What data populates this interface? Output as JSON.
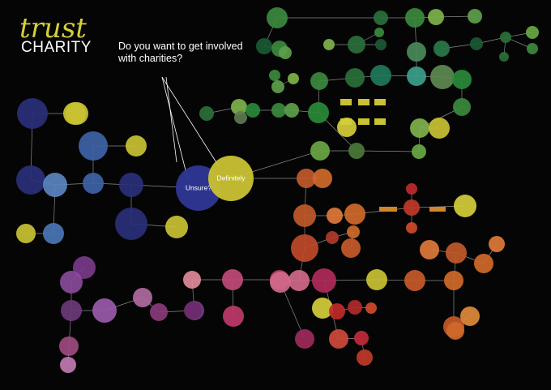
{
  "title": {
    "line1": "trust",
    "line2": "CHARITY"
  },
  "question": "Do you want to get involved with charities?",
  "colors": {
    "background": "#050505",
    "title": "#d4ce3a",
    "connector": "#8a8a8a",
    "annotation_line": "#ffffff"
  },
  "hubs": {
    "unsure": "Unsure?",
    "definitely": "Definitely"
  },
  "node_text": "",
  "nodes": [
    {
      "id": "unsure",
      "label": "Unsure?",
      "color": "#2f3796",
      "big": true
    },
    {
      "id": "definitely",
      "label": "Definitely",
      "color": "#c9c233",
      "big": true
    },
    {
      "id": "b1",
      "label": "",
      "color": "#2a2f78"
    },
    {
      "id": "b2",
      "label": "",
      "color": "#c9c233"
    },
    {
      "id": "b3",
      "label": "",
      "color": "#3f63a6"
    },
    {
      "id": "b4",
      "label": "",
      "color": "#c9c233"
    },
    {
      "id": "b5",
      "label": "",
      "color": "#2a2f78"
    },
    {
      "id": "b6",
      "label": "",
      "color": "#5a86c0"
    },
    {
      "id": "b7",
      "label": "",
      "color": "#3f63a6"
    },
    {
      "id": "b8",
      "label": "",
      "color": "#2a2f78"
    },
    {
      "id": "b9",
      "label": "",
      "color": "#2a2f78"
    },
    {
      "id": "b10",
      "label": "",
      "color": "#c9c233"
    },
    {
      "id": "b11",
      "label": "",
      "color": "#c9c233"
    },
    {
      "id": "b12",
      "label": "",
      "color": "#4a76b6"
    },
    {
      "id": "g1",
      "label": "",
      "color": "#3a8a3e"
    },
    {
      "id": "g2",
      "label": "",
      "color": "#7fb24a"
    },
    {
      "id": "g3",
      "label": "",
      "color": "#5ea04a"
    },
    {
      "id": "g4",
      "label": "",
      "color": "#3a8a3e"
    },
    {
      "id": "g5",
      "label": "",
      "color": "#2a6f3a"
    },
    {
      "id": "g6",
      "label": "",
      "color": "#1a5a34"
    },
    {
      "id": "g7",
      "label": "",
      "color": "#3a8a3e"
    },
    {
      "id": "g8",
      "label": "",
      "color": "#5ea04a"
    },
    {
      "id": "g9",
      "label": "",
      "color": "#7fb24a"
    },
    {
      "id": "g10",
      "label": "",
      "color": "#2a6f3a"
    },
    {
      "id": "g11",
      "label": "",
      "color": "#3a8a3e"
    },
    {
      "id": "g12",
      "label": "",
      "color": "#1a5a34"
    },
    {
      "id": "g13",
      "label": "",
      "color": "#4a8a5a"
    },
    {
      "id": "g14",
      "label": "",
      "color": "#2a7a4a"
    },
    {
      "id": "g15",
      "label": "",
      "color": "#1a5a34"
    },
    {
      "id": "g16",
      "label": "",
      "color": "#2a6f3a"
    },
    {
      "id": "g17",
      "label": "",
      "color": "#6aa844"
    },
    {
      "id": "g18",
      "label": "",
      "color": "#3a8a3e"
    },
    {
      "id": "g19",
      "label": "",
      "color": "#2a6f3a"
    },
    {
      "id": "g20",
      "label": "",
      "color": "#3a8a3e"
    },
    {
      "id": "g21",
      "label": "",
      "color": "#5ea04a"
    },
    {
      "id": "g22",
      "label": "",
      "color": "#7fb24a"
    },
    {
      "id": "g23",
      "label": "",
      "color": "#3a8a3e"
    },
    {
      "id": "g24",
      "label": "",
      "color": "#2a6f3a"
    },
    {
      "id": "g25",
      "label": "",
      "color": "#1f7a5a"
    },
    {
      "id": "g26",
      "label": "",
      "color": "#3aa08a"
    },
    {
      "id": "g27",
      "label": "",
      "color": "#5e8a52"
    },
    {
      "id": "g28",
      "label": "",
      "color": "#2a8a3a"
    },
    {
      "id": "g29",
      "label": "",
      "color": "#2a6f3a"
    },
    {
      "id": "g30",
      "label": "",
      "color": "#7fb24a"
    },
    {
      "id": "g31",
      "label": "",
      "color": "#5e7a52"
    },
    {
      "id": "g32",
      "label": "",
      "color": "#2a8a3a"
    },
    {
      "id": "g33",
      "label": "",
      "color": "#3a8a3e"
    },
    {
      "id": "g34",
      "label": "",
      "color": "#5ea04a"
    },
    {
      "id": "g35",
      "label": "",
      "color": "#2a8a3a"
    },
    {
      "id": "g36",
      "label": "",
      "color": "#6aa844"
    },
    {
      "id": "g37",
      "label": "",
      "color": "#4a7a3a"
    },
    {
      "id": "g38",
      "label": "",
      "color": "#6aa844"
    },
    {
      "id": "g39",
      "label": "",
      "color": "#3a8a3e"
    },
    {
      "id": "g40",
      "label": "",
      "color": "#7fb24a"
    },
    {
      "id": "y1",
      "label": "",
      "color": "#c9c233"
    },
    {
      "id": "y2",
      "label": "",
      "color": "#d4ce3a"
    },
    {
      "id": "y3",
      "label": "",
      "color": "#c9c233"
    },
    {
      "id": "y4",
      "label": "",
      "color": "#d4ce3a"
    },
    {
      "id": "y5",
      "label": "",
      "color": "#c9c233"
    },
    {
      "id": "y6",
      "label": "",
      "color": "#d4ce3a"
    },
    {
      "id": "o1",
      "label": "",
      "color": "#c05a2a"
    },
    {
      "id": "o2",
      "label": "",
      "color": "#d06a2a"
    },
    {
      "id": "o3",
      "label": "",
      "color": "#c05a2a"
    },
    {
      "id": "o4",
      "label": "",
      "color": "#e07a3a"
    },
    {
      "id": "o5",
      "label": "",
      "color": "#d06a2a"
    },
    {
      "id": "o6",
      "label": "",
      "color": "#c04a2a"
    },
    {
      "id": "o7",
      "label": "",
      "color": "#b03a2a"
    },
    {
      "id": "o8",
      "label": "",
      "color": "#d06a2a"
    },
    {
      "id": "o9",
      "label": "",
      "color": "#c85a2a"
    },
    {
      "id": "o10",
      "label": "",
      "color": "#e07a3a"
    },
    {
      "id": "o11",
      "label": "",
      "color": "#c05a2a"
    },
    {
      "id": "o12",
      "label": "",
      "color": "#d06a2a"
    },
    {
      "id": "o13",
      "label": "",
      "color": "#e07a3a"
    },
    {
      "id": "o14",
      "label": "",
      "color": "#c85a2a"
    },
    {
      "id": "o15",
      "label": "",
      "color": "#d06a2a"
    },
    {
      "id": "o16",
      "label": "",
      "color": "#c05a2a"
    },
    {
      "id": "o17",
      "label": "",
      "color": "#e08a3a"
    },
    {
      "id": "o18",
      "label": "",
      "color": "#d06a2a"
    },
    {
      "id": "r1",
      "label": "",
      "color": "#c02a2a"
    },
    {
      "id": "r2",
      "label": "",
      "color": "#c03a2a"
    },
    {
      "id": "r3",
      "label": "",
      "color": "#d04a2a"
    },
    {
      "id": "r4",
      "label": "",
      "color": "#c02a2a"
    },
    {
      "id": "r5",
      "label": "",
      "color": "#b02a2a"
    },
    {
      "id": "r6",
      "label": "",
      "color": "#d04a2a"
    },
    {
      "id": "r7",
      "label": "",
      "color": "#c03a2a"
    },
    {
      "id": "r8",
      "label": "",
      "color": "#c02a3a"
    },
    {
      "id": "r9",
      "label": "",
      "color": "#d04a3a"
    },
    {
      "id": "p1",
      "label": "",
      "color": "#c03a6a"
    },
    {
      "id": "p2",
      "label": "",
      "color": "#d06a8a"
    },
    {
      "id": "p3",
      "label": "",
      "color": "#b02a5a"
    },
    {
      "id": "p4",
      "label": "",
      "color": "#c04a7a"
    },
    {
      "id": "p5",
      "label": "",
      "color": "#e08a9a"
    },
    {
      "id": "p6",
      "label": "",
      "color": "#c03a6a"
    },
    {
      "id": "p7",
      "label": "",
      "color": "#a02a5a"
    },
    {
      "id": "p8",
      "label": "",
      "color": "#d06a8a"
    },
    {
      "id": "m1",
      "label": "",
      "color": "#7a3a8a"
    },
    {
      "id": "m2",
      "label": "",
      "color": "#8a4a9a"
    },
    {
      "id": "m3",
      "label": "",
      "color": "#6a3a7a"
    },
    {
      "id": "m4",
      "label": "",
      "color": "#9a5aaa"
    },
    {
      "id": "m5",
      "label": "",
      "color": "#b06aa0"
    },
    {
      "id": "m6",
      "label": "",
      "color": "#8a3a7a"
    },
    {
      "id": "m7",
      "label": "",
      "color": "#7a3a8a"
    },
    {
      "id": "m8",
      "label": "",
      "color": "#a04a80"
    },
    {
      "id": "m9",
      "label": "",
      "color": "#c07ab0"
    },
    {
      "id": "m10",
      "label": "",
      "color": "#6a2a6a"
    }
  ]
}
